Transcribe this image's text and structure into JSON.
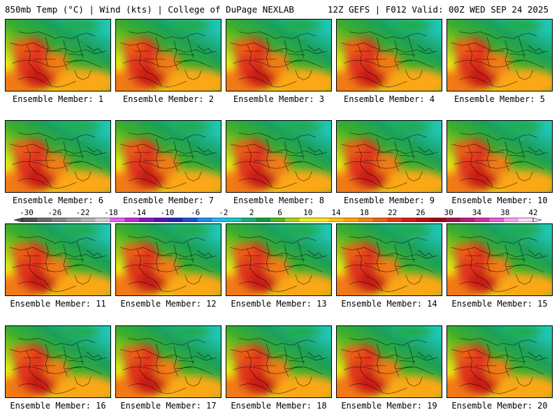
{
  "header": {
    "left": "850mb Temp (°C) | Wind (kts) | College of DuPage NEXLAB",
    "right": "12Z GEFS | F012 Valid: 00Z WED SEP 24 2025"
  },
  "panels": [
    {
      "label": "Ensemble Member: 1"
    },
    {
      "label": "Ensemble Member: 2"
    },
    {
      "label": "Ensemble Member: 3"
    },
    {
      "label": "Ensemble Member: 4"
    },
    {
      "label": "Ensemble Member: 5"
    },
    {
      "label": "Ensemble Member: 6"
    },
    {
      "label": "Ensemble Member: 7"
    },
    {
      "label": "Ensemble Member: 8"
    },
    {
      "label": "Ensemble Member: 9"
    },
    {
      "label": "Ensemble Member: 10"
    },
    {
      "label": "Ensemble Member: 11"
    },
    {
      "label": "Ensemble Member: 12"
    },
    {
      "label": "Ensemble Member: 13"
    },
    {
      "label": "Ensemble Member: 14"
    },
    {
      "label": "Ensemble Member: 15"
    },
    {
      "label": "Ensemble Member: 16"
    },
    {
      "label": "Ensemble Member: 17"
    },
    {
      "label": "Ensemble Member: 18"
    },
    {
      "label": "Ensemble Member: 19"
    },
    {
      "label": "Ensemble Member: 20"
    }
  ],
  "colorbar": {
    "ticks": [
      "-30",
      "-26",
      "-22",
      "-18",
      "-14",
      "-10",
      "-6",
      "-2",
      "2",
      "6",
      "10",
      "14",
      "18",
      "22",
      "26",
      "30",
      "34",
      "38",
      "42"
    ],
    "colors": [
      "#4f4f4f",
      "#6b6b6b",
      "#858585",
      "#9c9c9c",
      "#b4b4b4",
      "#cfcfcf",
      "#e066e8",
      "#c22bd6",
      "#8a16c4",
      "#5a10b8",
      "#2323b8",
      "#1a50dc",
      "#1e8cf0",
      "#21b9f0",
      "#19c7bd",
      "#18b074",
      "#0f9a3c",
      "#53b51d",
      "#a6d316",
      "#eaf016",
      "#ffe31a",
      "#ffc414",
      "#fba311",
      "#f48412",
      "#ee6212",
      "#e53a12",
      "#d91914",
      "#bb0f12",
      "#9a0a0c",
      "#a0134f",
      "#c0197e",
      "#d82ba6",
      "#ea5bd6",
      "#f5a3ef",
      "#fbd7f8"
    ]
  }
}
